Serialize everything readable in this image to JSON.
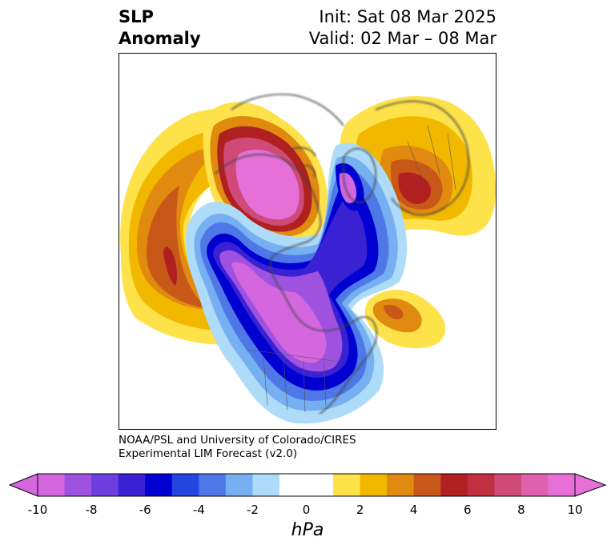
{
  "title": {
    "left_line1": "SLP",
    "left_line2": "Anomaly",
    "right_line1": "Init: Sat 08 Mar 2025",
    "right_line2": "Valid: 02 Mar – 08 Mar"
  },
  "credit": {
    "line1": "NOAA/PSL and University of Colorado/CIRES",
    "line2": "Experimental LIM Forecast (v2.0)"
  },
  "colorbar": {
    "unit": "hPa",
    "tick_labels": [
      "-10",
      "-8",
      "-6",
      "-4",
      "-2",
      "0",
      "2",
      "4",
      "6",
      "8",
      "10"
    ],
    "colors": [
      "#d467e0",
      "#9f52e0",
      "#6e3ee0",
      "#3a22d4",
      "#0000d0",
      "#2346e0",
      "#4e78e8",
      "#76aff2",
      "#aedcf8",
      "#ffffff",
      "#ffffff",
      "#fde24a",
      "#f2b800",
      "#e08a10",
      "#c85818",
      "#b02020",
      "#c03040",
      "#d04a78",
      "#e060b0",
      "#e670d8"
    ]
  },
  "colors": {
    "positive_strong": "#e670d8",
    "positive_mid": "#b02020",
    "positive_weak": "#fde24a",
    "negative_strong": "#d467e0",
    "negative_mid": "#0000d0",
    "negative_weak": "#aedcf8"
  }
}
